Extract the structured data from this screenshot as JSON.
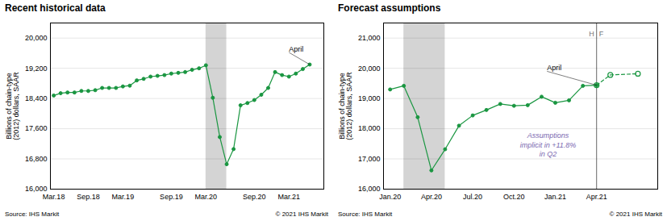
{
  "chart_data": [
    {
      "type": "line",
      "title": "Recent historical data",
      "y_label": "Billions of chain-type\n(2012) dollars, SAAR",
      "xlim": [
        2018.127,
        2021.42
      ],
      "xticks": [
        {
          "value": 2018.167,
          "label": "Mar.18"
        },
        {
          "value": 2018.583,
          "label": "Sep.18"
        },
        {
          "value": 2019.0,
          "label": "Mar.19"
        },
        {
          "value": 2019.583,
          "label": "Sep.19"
        },
        {
          "value": 2020.0,
          "label": "Mar.20"
        },
        {
          "value": 2020.583,
          "label": "Sep.20"
        },
        {
          "value": 2021.0,
          "label": "Mar.21"
        }
      ],
      "ylim": [
        16000,
        20400
      ],
      "yticks": [
        {
          "value": 16000,
          "label": "16,000"
        },
        {
          "value": 16800,
          "label": "16,800"
        },
        {
          "value": 17600,
          "label": "17,600"
        },
        {
          "value": 18400,
          "label": "18,400"
        },
        {
          "value": 19200,
          "label": "19,200"
        },
        {
          "value": 20000,
          "label": "20,000"
        }
      ],
      "grid": true,
      "shade_x": [
        2020.0,
        2020.25
      ],
      "shade_color": "#d4d4d4",
      "series": [
        {
          "color": "#1a9641",
          "marker": "filled",
          "line_style": "solid",
          "x": [
            2018.167,
            2018.25,
            2018.333,
            2018.417,
            2018.5,
            2018.583,
            2018.667,
            2018.75,
            2018.833,
            2018.917,
            2019.0,
            2019.083,
            2019.167,
            2019.25,
            2019.333,
            2019.417,
            2019.5,
            2019.583,
            2019.667,
            2019.75,
            2019.833,
            2019.917,
            2020.0,
            2020.083,
            2020.167,
            2020.25,
            2020.333,
            2020.417,
            2020.5,
            2020.583,
            2020.667,
            2020.75,
            2020.833,
            2020.917,
            2021.0,
            2021.083,
            2021.167,
            2021.25
          ],
          "values": [
            18480,
            18540,
            18560,
            18560,
            18600,
            18600,
            18620,
            18680,
            18680,
            18680,
            18720,
            18740,
            18880,
            18920,
            18980,
            19000,
            19020,
            19060,
            19080,
            19100,
            19160,
            19200,
            19280,
            18420,
            17380,
            16660,
            17060,
            18220,
            18280,
            18360,
            18500,
            18680,
            19100,
            19020,
            18980,
            19060,
            19180,
            19300
          ]
        }
      ],
      "annotations": [
        {
          "text": "April",
          "xy": [
            2021.25,
            19300
          ],
          "text_xy": [
            2021.0,
            19620
          ]
        }
      ],
      "source": "Source:  IHS Markit",
      "copyright": "© 2021  IHS Markit"
    },
    {
      "type": "line",
      "title": "Forecast assumptions",
      "y_label": "Billions of chain-type\n(2012) dollars, SAAR",
      "xlim": [
        2019.96,
        2021.62
      ],
      "xticks": [
        {
          "value": 2020.0,
          "label": "Jan.20"
        },
        {
          "value": 2020.25,
          "label": "Apr.20"
        },
        {
          "value": 2020.5,
          "label": "Jul.20"
        },
        {
          "value": 2020.75,
          "label": "Oct.20"
        },
        {
          "value": 2021.0,
          "label": "Jan.21"
        },
        {
          "value": 2021.25,
          "label": "Apr.21"
        }
      ],
      "ylim": [
        16000,
        21500
      ],
      "yticks": [
        {
          "value": 16000,
          "label": "16,000"
        },
        {
          "value": 17000,
          "label": "17,000"
        },
        {
          "value": 18000,
          "label": "18,000"
        },
        {
          "value": 19000,
          "label": "19,000"
        },
        {
          "value": 20000,
          "label": "20,000"
        },
        {
          "value": 21000,
          "label": "21,000"
        }
      ],
      "grid": true,
      "shade_x": [
        2020.083,
        2020.333
      ],
      "shade_color": "#d4d4d4",
      "vline_x": 2021.25,
      "vline_labels": [
        "H",
        "F"
      ],
      "series": [
        {
          "color": "#1a9641",
          "marker": "filled",
          "line_style": "solid",
          "x": [
            2020.0,
            2020.083,
            2020.167,
            2020.25,
            2020.333,
            2020.417,
            2020.5,
            2020.583,
            2020.667,
            2020.75,
            2020.833,
            2020.917,
            2021.0,
            2021.083,
            2021.167,
            2021.25
          ],
          "values": [
            19300,
            19420,
            18380,
            16620,
            17320,
            18100,
            18440,
            18620,
            18820,
            18760,
            18780,
            19060,
            18860,
            18940,
            19420,
            19440
          ]
        },
        {
          "color": "#1a9641",
          "marker": "open",
          "line_style": "dashed",
          "x": [
            2021.25,
            2021.333,
            2021.5
          ],
          "values": [
            19440,
            19780,
            19820
          ]
        }
      ],
      "annotations": [
        {
          "text": "April",
          "xy": [
            2021.25,
            19440
          ],
          "text_xy": [
            2020.95,
            19900
          ]
        },
        {
          "text": "Assumptions\nimplicit in +11.8%\nin Q2",
          "color": "#7b68b0"
        }
      ],
      "source": "Source:  IHS Markit",
      "copyright": "© 2021  IHS Markit"
    }
  ]
}
